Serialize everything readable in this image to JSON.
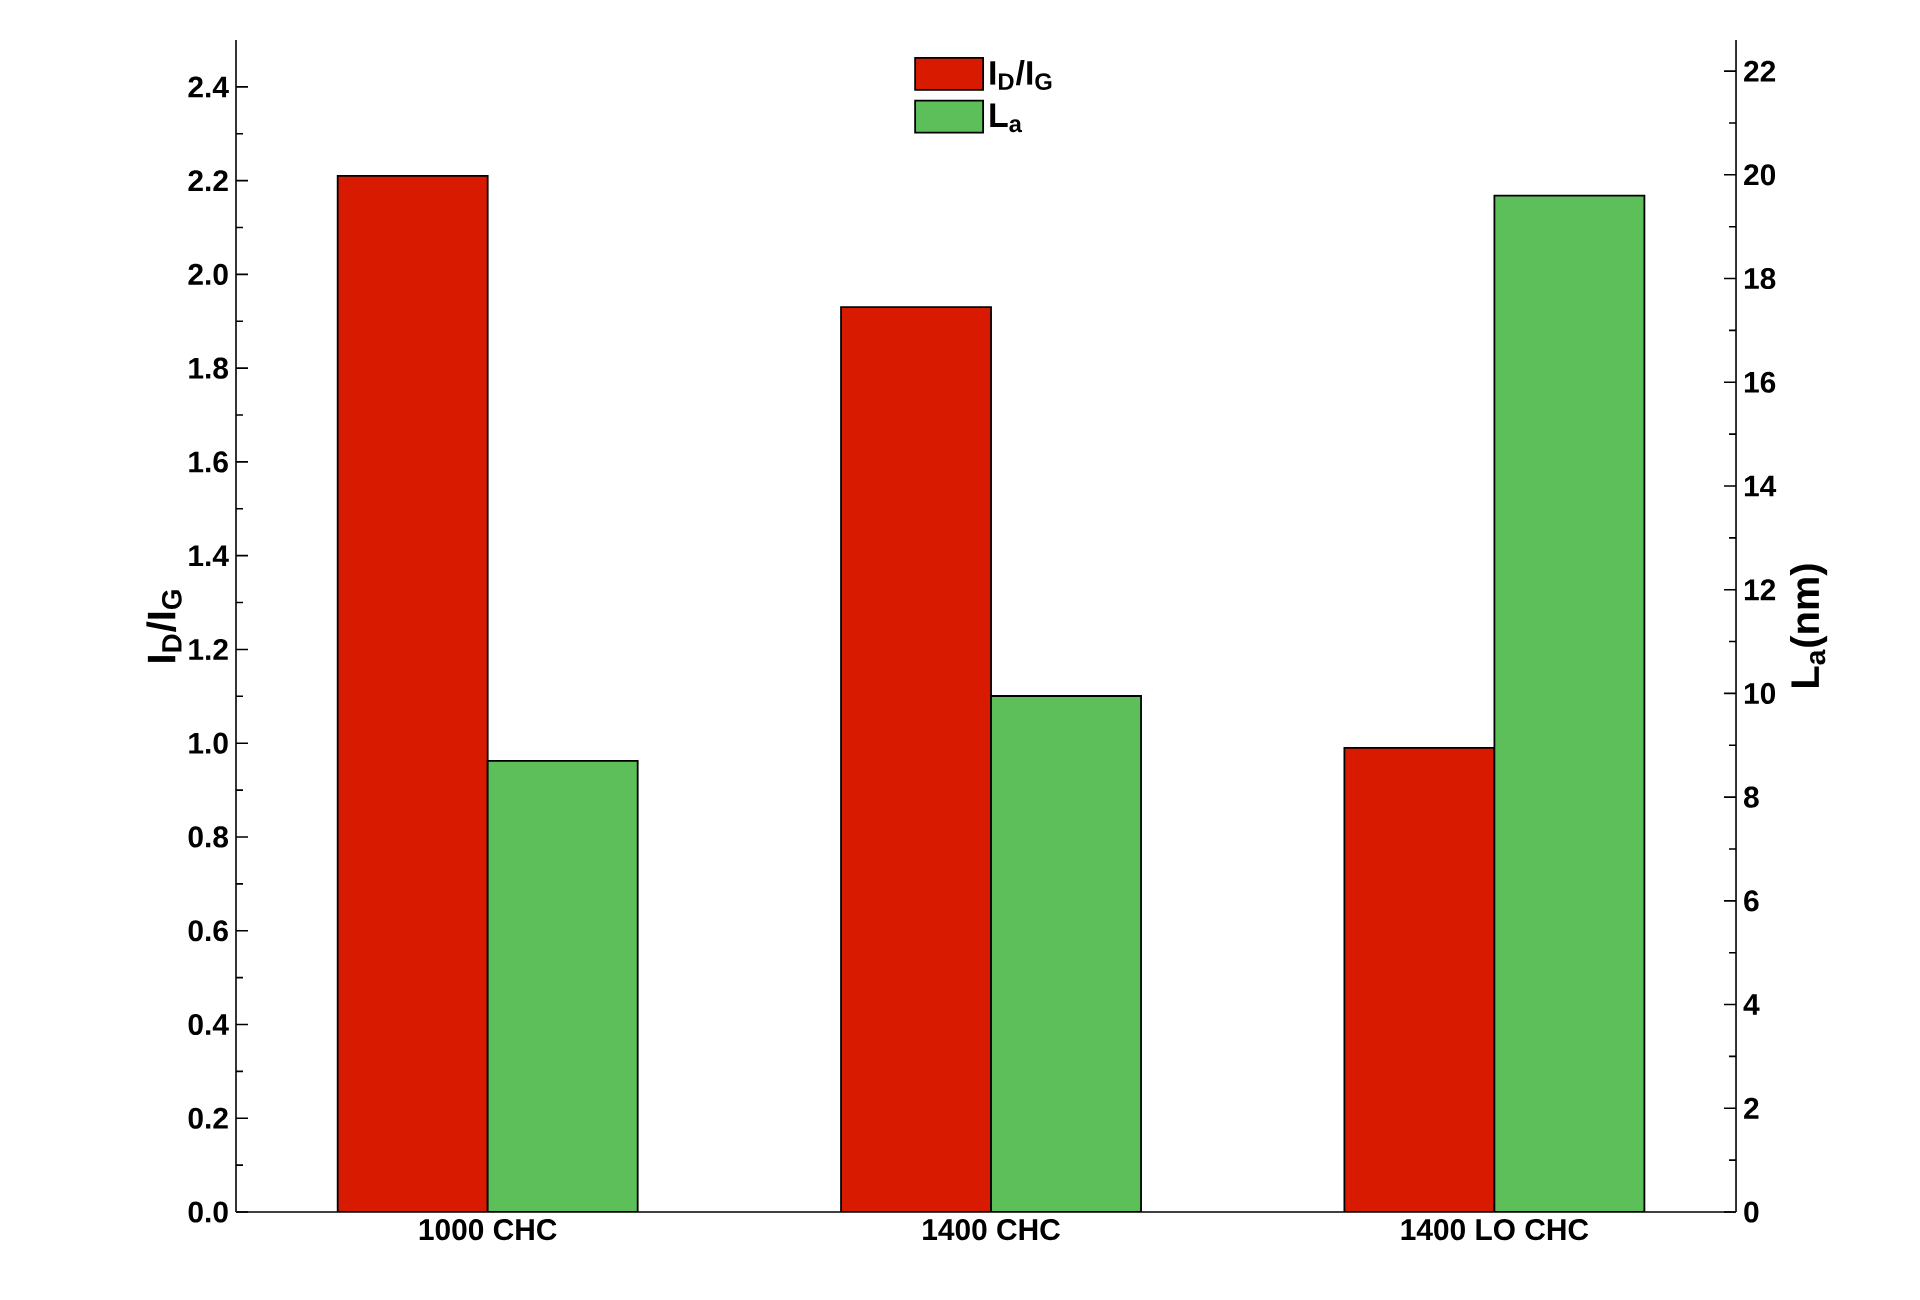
{
  "chart_data": {
    "type": "bar",
    "categories": [
      "1000 CHC",
      "1400 CHC",
      "1400 LO CHC"
    ],
    "ylabel": "I$_{D}$/I$_{G}$",
    "y2label": "L$_{a}$(nm)",
    "series": [
      {
        "name": "I$_{D}$/I$_{G}$",
        "color": "#d81a00",
        "values": [
          2.21,
          1.93,
          0.99
        ]
      },
      {
        "name": "L$_{a}$",
        "color": "#5cbf5a",
        "values": [
          8.7,
          9.95,
          19.6
        ],
        "axis": "y2"
      }
    ],
    "ylim": [
      0,
      2.5
    ],
    "yticks": [
      {
        "value": 0,
        "label": "0.0"
      },
      {
        "value": 0.2,
        "label": "0.2"
      },
      {
        "value": 0.4,
        "label": "0.4"
      },
      {
        "value": 0.6,
        "label": "0.6"
      },
      {
        "value": 0.8,
        "label": "0.8"
      },
      {
        "value": 1,
        "label": "1.0"
      },
      {
        "value": 1.2,
        "label": "1.2"
      },
      {
        "value": 1.4,
        "label": "1.4"
      },
      {
        "value": 1.6,
        "label": "1.6"
      },
      {
        "value": 1.8,
        "label": "1.8"
      },
      {
        "value": 2,
        "label": "2.0"
      },
      {
        "value": 2.2,
        "label": "2.2"
      },
      {
        "value": 2.4,
        "label": "2.4"
      }
    ],
    "y2lim": [
      0,
      22.6
    ],
    "y2ticks": [
      0,
      2,
      4,
      6,
      8,
      10,
      12,
      14,
      16,
      18,
      20,
      22
    ],
    "legend": "top",
    "grid": false
  }
}
